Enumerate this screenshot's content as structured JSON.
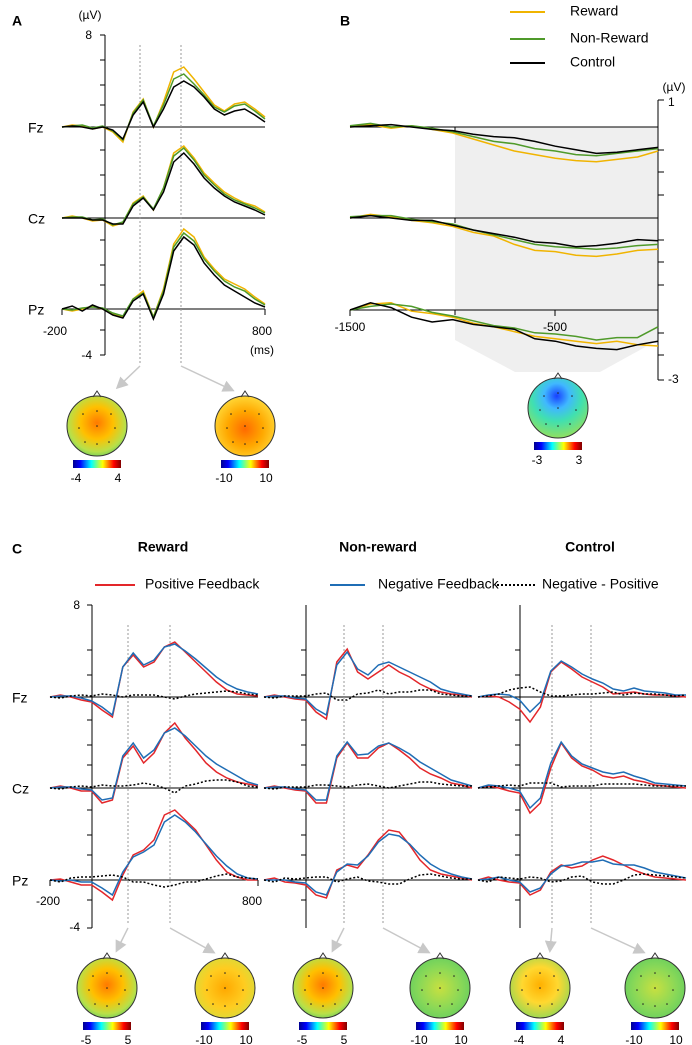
{
  "legend_ab": [
    {
      "name": "Reward",
      "color": "#f0b400"
    },
    {
      "name": "Non-Reward",
      "color": "#4f9a2a"
    },
    {
      "name": "Control",
      "color": "#000000"
    }
  ],
  "panel_a": {
    "label": "A",
    "unit": "(µV)",
    "ymax_label": 8,
    "ymin_label": -4,
    "xmin_label": -200,
    "xmax_label": 800,
    "x_unit": "(ms)",
    "electrodes": [
      "Fz",
      "Cz",
      "Pz"
    ],
    "x": [
      -200,
      -150,
      -100,
      -50,
      0,
      50,
      100,
      150,
      200,
      250,
      300,
      350,
      400,
      450,
      500,
      550,
      600,
      650,
      700,
      750,
      800
    ],
    "traces": [
      [
        [
          0,
          0.2,
          0.1,
          -0.2,
          0,
          -0.5,
          -1.5,
          1.5,
          2.8,
          0,
          2.5,
          5.5,
          6,
          4.8,
          3.5,
          2.2,
          1.6,
          2.3,
          2.5,
          1.8,
          1
        ],
        [
          0,
          0.1,
          0.2,
          -0.1,
          0.1,
          -0.4,
          -1.3,
          1.4,
          2.7,
          0.1,
          2.2,
          4.8,
          5.3,
          4.3,
          3.2,
          2,
          1.5,
          2.1,
          2.3,
          1.6,
          0.8
        ],
        [
          0,
          0.1,
          0,
          -0.2,
          0,
          -0.3,
          -1.2,
          1.2,
          2.5,
          0,
          1.8,
          4,
          4.6,
          4,
          3,
          1.8,
          1.2,
          1.6,
          1.8,
          1.2,
          0.5
        ]
      ],
      [
        [
          0,
          0.2,
          0,
          -0.3,
          -0.2,
          -0.8,
          -0.5,
          1.5,
          2.2,
          0.8,
          3,
          6.5,
          7.2,
          6,
          4.5,
          3.5,
          2.6,
          2,
          1.5,
          1.2,
          0.6
        ],
        [
          0,
          0.1,
          0.1,
          -0.2,
          -0.1,
          -0.7,
          -0.4,
          1.4,
          2.1,
          0.9,
          3,
          6.2,
          7,
          5.8,
          4.3,
          3.3,
          2.4,
          1.8,
          1.4,
          1,
          0.5
        ],
        [
          0,
          0,
          0,
          -0.2,
          -0.2,
          -0.6,
          -0.6,
          1.2,
          2,
          0.8,
          2.6,
          5.6,
          6.5,
          5.4,
          4,
          3,
          2.2,
          1.6,
          1.2,
          0.8,
          0.3
        ]
      ],
      [
        [
          0,
          -0.2,
          0,
          0.3,
          0,
          -0.5,
          -0.8,
          1,
          1.8,
          -0.8,
          2,
          6.5,
          8,
          7.2,
          5.2,
          4,
          3,
          2.5,
          2,
          1.2,
          0.5
        ],
        [
          0,
          -0.1,
          0.1,
          0.2,
          0.1,
          -0.4,
          -0.7,
          1,
          1.6,
          -0.8,
          1.8,
          6.2,
          7.6,
          6.8,
          5,
          3.8,
          2.8,
          2.2,
          1.8,
          1,
          0.4
        ],
        [
          0,
          0.3,
          -0.2,
          0.4,
          0,
          -0.6,
          -0.9,
          0.8,
          1.5,
          -1,
          1.5,
          5.8,
          7.2,
          6.4,
          4.6,
          3.4,
          2.4,
          1.8,
          1.2,
          0.6,
          0.2
        ]
      ]
    ],
    "topomaps": [
      {
        "min": -4,
        "max": 4
      },
      {
        "min": -10,
        "max": 10
      }
    ]
  },
  "panel_b": {
    "label": "B",
    "unit": "(µV)",
    "ymax_label": 1,
    "ymin_label": -3,
    "xmin_label": -1500,
    "xmid_label": -500,
    "x": [
      -1500,
      -1400,
      -1300,
      -1200,
      -1100,
      -1000,
      -900,
      -800,
      -700,
      -600,
      -500,
      -400,
      -300,
      -200,
      -100,
      0
    ],
    "traces": [
      [
        [
          0,
          0.2,
          -0.1,
          0.1,
          -0.2,
          -0.5,
          -1,
          -1.5,
          -2,
          -2.3,
          -2.6,
          -2.8,
          -2.9,
          -2.7,
          -2.5,
          -2
        ],
        [
          0.1,
          0.3,
          0,
          0.1,
          -0.1,
          -0.4,
          -0.8,
          -1.2,
          -1.4,
          -1.8,
          -2,
          -2.3,
          -2.4,
          -2.2,
          -2,
          -1.8
        ],
        [
          0,
          0.1,
          0.2,
          0,
          -0.2,
          -0.3,
          -0.6,
          -0.8,
          -0.9,
          -1.2,
          -1.6,
          -1.9,
          -2.2,
          -2.1,
          -1.9,
          -1.7
        ]
      ],
      [
        [
          0,
          0.3,
          0.1,
          -0.2,
          -0.4,
          -0.7,
          -1.2,
          -1.5,
          -2.2,
          -2.7,
          -2.8,
          -3.1,
          -3.2,
          -3,
          -2.7,
          -2.6
        ],
        [
          0.1,
          0.2,
          0.2,
          -0.1,
          -0.3,
          -0.5,
          -1,
          -1.4,
          -1.8,
          -2.2,
          -2.4,
          -2.5,
          -2.6,
          -2.5,
          -2.3,
          -2.2
        ],
        [
          0,
          0.2,
          0,
          -0.2,
          -0.2,
          -0.6,
          -1,
          -1.3,
          -1.6,
          -2,
          -2.1,
          -2.4,
          -2.3,
          -2.1,
          -1.8,
          -1.9
        ]
      ],
      [
        [
          0,
          0.5,
          0.6,
          -0.1,
          -0.3,
          -0.6,
          -1.1,
          -1.4,
          -1.8,
          -2.2,
          -2.4,
          -2.6,
          -2.8,
          -2.6,
          -2.9,
          -3
        ],
        [
          0,
          0.3,
          0.5,
          0.3,
          -0.2,
          -0.5,
          -0.9,
          -1.3,
          -1.5,
          -1.9,
          -2,
          -2.2,
          -2.5,
          -2.3,
          -2.3,
          -1.4
        ],
        [
          0,
          0.6,
          0.2,
          -0.6,
          -1,
          -0.8,
          -1.2,
          -1.4,
          -1.6,
          -2.4,
          -2.6,
          -3,
          -3.2,
          -3.3,
          -2.9,
          -2.6
        ]
      ]
    ],
    "topomaps": [
      {
        "min": -3,
        "max": 3
      }
    ]
  },
  "panel_c": {
    "label": "C",
    "ymax_label": 8,
    "ymin_label": -4,
    "xmin_label": -200,
    "xmax_label": 800,
    "electrodes": [
      "Fz",
      "Cz",
      "Pz"
    ],
    "legend": [
      {
        "name": "Positive Feedback",
        "color": "#e3262a",
        "dash": false
      },
      {
        "name": "Negative Feedback",
        "color": "#1f6db5",
        "dash": false
      },
      {
        "name": "Negative - Positive",
        "color": "#000000",
        "dash": true
      }
    ],
    "x": [
      -200,
      -150,
      -100,
      -50,
      0,
      50,
      100,
      150,
      200,
      250,
      300,
      350,
      400,
      450,
      500,
      550,
      600,
      650,
      700,
      750,
      800
    ],
    "conditions": [
      {
        "title": "Reward",
        "traces": [
          [
            [
              0,
              0.2,
              0,
              -0.3,
              -0.5,
              -1.3,
              -2,
              3,
              4.2,
              3,
              3.5,
              5,
              5.5,
              4.5,
              3.5,
              2.5,
              1.5,
              0.7,
              0.3,
              0.2,
              0.1
            ],
            [
              0,
              0.1,
              0.1,
              -0.1,
              -0.4,
              -1,
              -1.8,
              3,
              4.4,
              3.2,
              3.7,
              5,
              5.3,
              4.6,
              3.8,
              2.9,
              2,
              1.3,
              0.8,
              0.5,
              0.3
            ],
            [
              0,
              -0.1,
              0.1,
              0.2,
              0.1,
              0.3,
              0.2,
              0,
              0.2,
              0.2,
              0.2,
              0,
              -0.2,
              0.1,
              0.3,
              0.4,
              0.5,
              0.6,
              0.5,
              0.3,
              0.2
            ]
          ],
          [
            [
              0,
              0.2,
              0,
              -0.3,
              -0.3,
              -1.5,
              -1.2,
              3,
              4.2,
              2.5,
              3.5,
              5.5,
              6.5,
              5,
              3.8,
              2.5,
              1.6,
              1,
              0.6,
              0.4,
              0.2
            ],
            [
              0,
              0.1,
              0.1,
              -0.1,
              -0.2,
              -1.2,
              -1,
              3.2,
              4.5,
              3,
              3.8,
              5.5,
              6,
              5.2,
              4.2,
              3.2,
              2.4,
              1.8,
              1.2,
              0.6,
              0.3
            ],
            [
              0,
              -0.1,
              0.1,
              0.2,
              0.1,
              0.3,
              0.2,
              0.2,
              0.3,
              0.5,
              0.3,
              0,
              -0.5,
              0.2,
              0.4,
              0.7,
              0.8,
              0.8,
              0.6,
              0.2,
              0.1
            ]
          ],
          [
            [
              0,
              0.1,
              -0.2,
              -0.5,
              -0.5,
              -1.2,
              -2,
              0.5,
              2.5,
              3,
              4,
              6.5,
              7,
              6,
              5,
              3.5,
              2,
              0.8,
              0.3,
              0,
              0
            ],
            [
              0,
              -0.1,
              0,
              -0.2,
              -0.2,
              -0.8,
              -1.5,
              0.8,
              2.3,
              2.8,
              3.5,
              5.8,
              6.5,
              5.8,
              4.8,
              3.6,
              2.4,
              1.4,
              0.6,
              0.2,
              0.1
            ],
            [
              0,
              -0.2,
              0.2,
              0.3,
              0.3,
              0.4,
              0.5,
              0.3,
              -0.2,
              -0.2,
              -0.5,
              -0.7,
              -0.5,
              -0.2,
              -0.2,
              0.1,
              0.4,
              0.6,
              0.3,
              0.2,
              0.1
            ]
          ]
        ],
        "topomaps": [
          {
            "min": -5,
            "max": 5
          },
          {
            "min": -10,
            "max": 10
          }
        ]
      },
      {
        "title": "Non-reward",
        "traces": [
          [
            [
              0,
              0.2,
              0,
              -0.2,
              -0.3,
              -1.5,
              -2.2,
              3.5,
              4.8,
              2.5,
              1.8,
              2.5,
              3.2,
              2.5,
              2,
              1.3,
              0.8,
              0.5,
              0.3,
              0.2,
              0
            ],
            [
              0,
              0.1,
              0.1,
              -0.1,
              -0.2,
              -1.2,
              -1.8,
              3.2,
              4.5,
              2.8,
              2.2,
              3.2,
              3.5,
              3,
              2.5,
              2,
              1.5,
              0.8,
              0.5,
              0.3,
              0.1
            ],
            [
              0,
              -0.1,
              0.1,
              0.1,
              0.1,
              0.3,
              0.4,
              -0.3,
              -0.3,
              0.3,
              0.4,
              0.7,
              0.3,
              0.5,
              0.5,
              0.7,
              0.7,
              0.3,
              0.2,
              0.1,
              0.1
            ]
          ],
          [
            [
              0,
              0.2,
              0,
              -0.2,
              -0.3,
              -1.5,
              -1.5,
              3,
              4.5,
              3,
              3,
              4,
              4.5,
              3.8,
              3,
              2,
              1.4,
              1,
              0.5,
              0.3,
              0
            ],
            [
              0,
              0.1,
              0.1,
              -0.1,
              -0.2,
              -1.2,
              -1.2,
              3.2,
              4.6,
              3.3,
              3.4,
              4.2,
              4.5,
              4,
              3.4,
              2.6,
              2,
              1.4,
              0.8,
              0.5,
              0.2
            ],
            [
              0,
              -0.1,
              0.1,
              0.1,
              0.1,
              0.3,
              0.3,
              0.2,
              0.1,
              0.3,
              0.4,
              0.2,
              0,
              0.2,
              0.4,
              0.6,
              0.6,
              0.4,
              0.3,
              0.2,
              0.2
            ]
          ],
          [
            [
              0,
              0.2,
              -0.2,
              -0.3,
              -0.5,
              -1.5,
              -1.8,
              1,
              1.5,
              1.2,
              2.5,
              4,
              5,
              4.8,
              3.5,
              2,
              1,
              0.6,
              0.4,
              0.2,
              0
            ],
            [
              0,
              0,
              0,
              -0.2,
              -0.3,
              -1.2,
              -1.5,
              0.8,
              1.6,
              1.5,
              2.4,
              3.8,
              4.6,
              4.4,
              3.6,
              2.5,
              1.6,
              1,
              0.6,
              0.3,
              0.1
            ],
            [
              0,
              -0.2,
              0.2,
              0.1,
              0.2,
              0.3,
              0.3,
              -0.2,
              0.1,
              0.3,
              -0.1,
              -0.2,
              -0.4,
              -0.4,
              0.1,
              0.5,
              0.6,
              0.4,
              0.2,
              0.1,
              0.1
            ]
          ]
        ],
        "topomaps": [
          {
            "min": -5,
            "max": 5
          },
          {
            "min": -10,
            "max": 10
          }
        ]
      },
      {
        "title": "Control",
        "traces": [
          [
            [
              0,
              0.1,
              0,
              -0.5,
              -1.2,
              -2.5,
              -1,
              2.5,
              3.5,
              2.8,
              2,
              1.5,
              1,
              0.3,
              0.4,
              0.5,
              0.3,
              0.2,
              0.2,
              0.1,
              0
            ],
            [
              0,
              0.2,
              0.3,
              0.2,
              -0.3,
              -1.5,
              -0.5,
              2.6,
              3.6,
              3,
              2.3,
              1.8,
              1.4,
              0.8,
              0.6,
              0.9,
              0.6,
              0.5,
              0.4,
              0.2,
              0.2
            ],
            [
              0,
              0.1,
              0.3,
              0.7,
              0.9,
              1,
              0.5,
              0.1,
              0.1,
              0.2,
              0.3,
              0.3,
              0.4,
              0.5,
              0.2,
              0.4,
              0.3,
              0.3,
              0.2,
              0.1,
              0.2
            ]
          ],
          [
            [
              0,
              0.2,
              0,
              -0.3,
              -0.5,
              -2.5,
              -1.5,
              2,
              4.5,
              3,
              2.2,
              1.8,
              1.2,
              1,
              1.2,
              0.8,
              0.6,
              0.3,
              0.2,
              0.1,
              0
            ],
            [
              0,
              0.3,
              0.2,
              0,
              -0.3,
              -2,
              -1,
              2.5,
              4.6,
              3.2,
              2.4,
              2,
              1.6,
              1.4,
              1.6,
              1.2,
              0.9,
              0.5,
              0.4,
              0.3,
              0.2
            ],
            [
              0,
              0.1,
              0.2,
              0.3,
              0.2,
              0.5,
              0.5,
              0.5,
              0.1,
              0.2,
              0.2,
              0.2,
              0.4,
              0.4,
              0.4,
              0.4,
              0.3,
              0.2,
              0.2,
              0.2,
              0.2
            ]
          ],
          [
            [
              0,
              0.3,
              0,
              -0.2,
              -0.3,
              -1.5,
              -1,
              0.8,
              1.5,
              1.2,
              1.4,
              2,
              2.4,
              2,
              1.5,
              1,
              0.6,
              0.3,
              0.2,
              0.1,
              0
            ],
            [
              0,
              0.1,
              0.3,
              0,
              -0.2,
              -1.2,
              -0.8,
              0.6,
              1.4,
              1.5,
              1.8,
              1.8,
              2,
              1.6,
              1.5,
              1.5,
              1.2,
              0.8,
              0.6,
              0.4,
              0.2
            ],
            [
              0,
              -0.2,
              0.3,
              0.2,
              0.1,
              0.3,
              0.2,
              -0.2,
              -0.1,
              0.3,
              0.4,
              -0.2,
              -0.4,
              -0.4,
              0,
              0.5,
              0.6,
              0.5,
              0.4,
              0.3,
              0.2
            ]
          ]
        ],
        "topomaps": [
          {
            "min": -4,
            "max": 4
          },
          {
            "min": -10,
            "max": 10
          }
        ]
      }
    ]
  }
}
